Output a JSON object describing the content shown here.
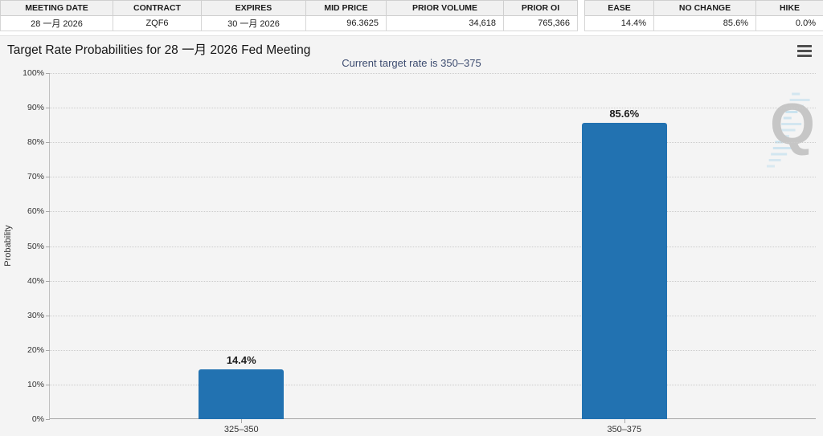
{
  "summary_table": {
    "headers": [
      "MEETING DATE",
      "CONTRACT",
      "EXPIRES",
      "MID PRICE",
      "PRIOR VOLUME",
      "PRIOR OI"
    ],
    "values": [
      "28 一月 2026",
      "ZQF6",
      "30 一月 2026",
      "96.3625",
      "34,618",
      "765,366"
    ]
  },
  "rate_move_table": {
    "headers": [
      "EASE",
      "NO CHANGE",
      "HIKE"
    ],
    "values": [
      "14.4%",
      "85.6%",
      "0.0%"
    ]
  },
  "icons": {
    "menu": "hamburger-icon"
  },
  "chart_data": {
    "type": "bar",
    "title": "Target Rate Probabilities for 28 一月 2026 Fed Meeting",
    "subtitle": "Current target rate is 350–375",
    "subtitle_color": "#3d4c70",
    "categories": [
      "325–350",
      "350–375"
    ],
    "values": [
      14.4,
      85.6
    ],
    "value_labels": [
      "14.4%",
      "85.6%"
    ],
    "xlabel": "",
    "ylabel": "Probability",
    "ylim": [
      0,
      100
    ],
    "ytick_step": 10,
    "ytick_suffix": "%",
    "grid": true,
    "legend": false,
    "bar_color": "#2272b1",
    "watermark_letter": "Q",
    "watermark_color": "#c6c6c6",
    "watermark_hash_color": "#a9d6ec"
  }
}
